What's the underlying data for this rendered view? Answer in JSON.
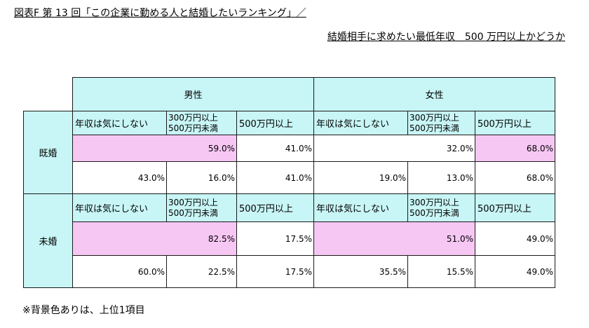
{
  "title": "図表F  第 13 回「この企業に勤める人と結婚したいランキング」／",
  "subtitle": "結婚相手に求めたい最低年収＿500 万円以上かどうか",
  "colors": {
    "header_bg": "#c8f5f5",
    "top_highlight": "#f7c7f4"
  },
  "columns": {
    "male": "男性",
    "female": "女性",
    "labels": [
      "年収は気にしない",
      "300万円以上",
      "500万円未満",
      "500万円以上"
    ]
  },
  "groups": [
    {
      "name": "既婚",
      "summary": {
        "male_a": "59.0%",
        "male_b": "41.0%",
        "female_a": "32.0%",
        "female_b": "68.0%"
      },
      "detail": {
        "male": [
          "43.0%",
          "16.0%",
          "41.0%"
        ],
        "female": [
          "19.0%",
          "13.0%",
          "68.0%"
        ]
      }
    },
    {
      "name": "未婚",
      "summary": {
        "male_a": "82.5%",
        "male_b": "17.5%",
        "female_a": "51.0%",
        "female_b": "49.0%"
      },
      "detail": {
        "male": [
          "60.0%",
          "22.5%",
          "17.5%"
        ],
        "female": [
          "35.5%",
          "15.5%",
          "49.0%"
        ]
      }
    }
  ],
  "footnote": "※背景色ありは、上位1項目"
}
